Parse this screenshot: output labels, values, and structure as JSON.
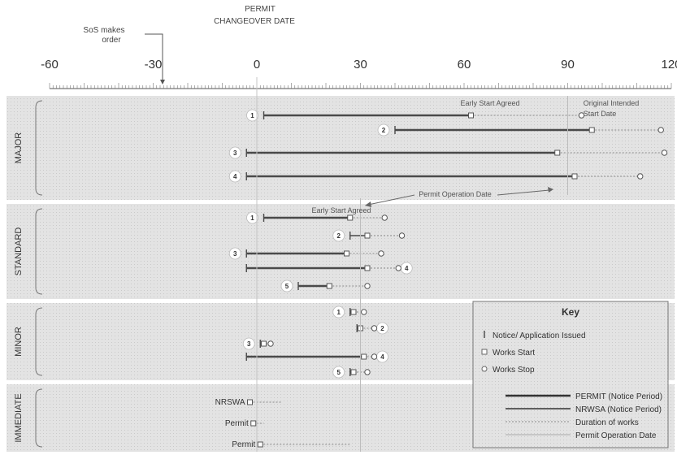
{
  "header": {
    "permit_line1": "PERMIT",
    "permit_line2": "CHANGEOVER DATE",
    "sos_line1": "SoS makes",
    "sos_line2": "order"
  },
  "axis": {
    "ticks": [
      {
        "value": -60,
        "label": "-60"
      },
      {
        "value": -30,
        "label": "-30"
      },
      {
        "value": 0,
        "label": "0"
      },
      {
        "value": 30,
        "label": "30"
      },
      {
        "value": 60,
        "label": "60"
      },
      {
        "value": 90,
        "label": "90"
      },
      {
        "value": 120,
        "label": "120"
      }
    ],
    "domain": [
      -60,
      120
    ],
    "sos_order_day": -27
  },
  "sections": [
    {
      "label": "MAJOR",
      "rows": [
        {
          "num": "1",
          "notice": 2,
          "start": 62,
          "stop": 94,
          "style": "permit"
        },
        {
          "num": "2",
          "notice": 40,
          "start": 97,
          "stop": 117,
          "style": "permit"
        },
        {
          "num": "3",
          "notice": -3,
          "start": 87,
          "stop": 118,
          "style": "permit"
        },
        {
          "num": "4",
          "notice": -3,
          "start": 92,
          "stop": 111,
          "style": "permit"
        }
      ]
    },
    {
      "label": "STANDARD",
      "rows": [
        {
          "num": "1",
          "notice": 2,
          "start": 27,
          "stop": 37,
          "style": "permit"
        },
        {
          "num": "2",
          "notice": 27,
          "start": 32,
          "stop": 42,
          "style": "nrswa"
        },
        {
          "num": "3",
          "notice": -3,
          "start": 26,
          "stop": 36,
          "style": "permit"
        },
        {
          "num": "4",
          "notice": -3,
          "start": 32,
          "stop": 41,
          "style": "permit"
        },
        {
          "num": "5",
          "notice": 12,
          "start": 21,
          "stop": 32,
          "style": "permit"
        }
      ]
    },
    {
      "label": "MINOR",
      "rows": [
        {
          "num": "1",
          "notice": 27,
          "start": 28,
          "stop": 31,
          "style": "permit"
        },
        {
          "num": "2",
          "notice": 29,
          "start": 30,
          "stop": 34,
          "style": "nrswa"
        },
        {
          "num": "3",
          "notice": 1,
          "start": 2,
          "stop": 4,
          "style": "permit"
        },
        {
          "num": "4",
          "notice": -3,
          "start": 31,
          "stop": 34,
          "style": "permit"
        },
        {
          "num": "5",
          "notice": 27,
          "start": 28,
          "stop": 32,
          "style": "permit"
        }
      ]
    },
    {
      "label": "IMMEDIATE",
      "rows": [
        {
          "label": "NRSWA",
          "start": -2,
          "stop": 7
        },
        {
          "label": "Permit",
          "start": -1,
          "stop": 2
        },
        {
          "label": "Permit",
          "start": 1,
          "stop": 27
        }
      ]
    }
  ],
  "annotations": {
    "early_start_major": "Early Start Agreed",
    "original_line1": "Original Intended",
    "original_line2": "Start Date",
    "permit_operation": "Permit Operation Date",
    "early_start_standard": "Early Start Agreed"
  },
  "key": {
    "title": "Key",
    "items": [
      {
        "symbol": "tick",
        "label": "Notice/ Application Issued"
      },
      {
        "symbol": "square",
        "label": "Works Start"
      },
      {
        "symbol": "circle",
        "label": "Works Stop"
      }
    ],
    "lines": [
      {
        "style": "permit",
        "label": "PERMIT (Notice Period)"
      },
      {
        "style": "nrswa",
        "label": "NRWSA (Notice Period)"
      },
      {
        "style": "duration",
        "label": "Duration of works"
      },
      {
        "style": "opdate",
        "label": "Permit Operation Date"
      }
    ]
  },
  "colors": {
    "band": "#dedede",
    "line": "#4a4a4a",
    "dotted": "#8a8a8a",
    "text": "#333333",
    "opdate_line": "#bdbdbd"
  }
}
